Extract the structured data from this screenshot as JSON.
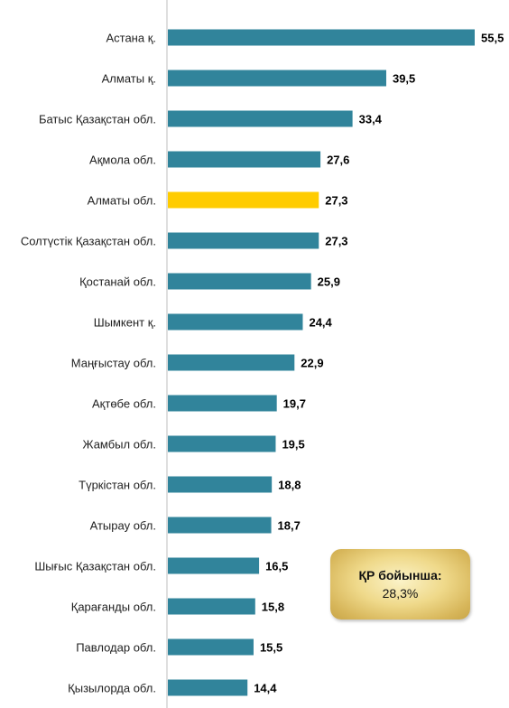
{
  "chart_data": {
    "type": "bar",
    "orientation": "horizontal",
    "categories": [
      "Астана қ.",
      "Алматы қ.",
      "Батыс Қазақстан обл.",
      "Ақмола обл.",
      "Алматы обл.",
      "Солтүстік Қазақстан обл.",
      "Қостанай обл.",
      "Шымкент қ.",
      "Маңғыстау обл.",
      "Ақтөбе обл.",
      "Жамбыл обл.",
      "Түркістан обл.",
      "Атырау обл.",
      "Шығыс Қазақстан обл.",
      "Қарағанды обл.",
      "Павлодар обл.",
      "Қызылорда обл."
    ],
    "values": [
      55.5,
      39.5,
      33.4,
      27.6,
      27.3,
      27.3,
      25.9,
      24.4,
      22.9,
      19.7,
      19.5,
      18.8,
      18.7,
      16.5,
      15.8,
      15.5,
      14.4
    ],
    "value_labels": [
      "55,5",
      "39,5",
      "33,4",
      "27,6",
      "27,3",
      "27,3",
      "25,9",
      "24,4",
      "22,9",
      "19,7",
      "19,5",
      "18,8",
      "18,7",
      "16,5",
      "15,8",
      "15,5",
      "14,4"
    ],
    "highlight_index": 4,
    "colors": {
      "bar": "#31849b",
      "highlight": "#ffcc00",
      "axis": "#bfbfbf"
    },
    "xlim": [
      0,
      56
    ],
    "grid": false,
    "legend": "none"
  },
  "note": {
    "line1": "ҚР бойынша:",
    "line2": "28,3%"
  }
}
